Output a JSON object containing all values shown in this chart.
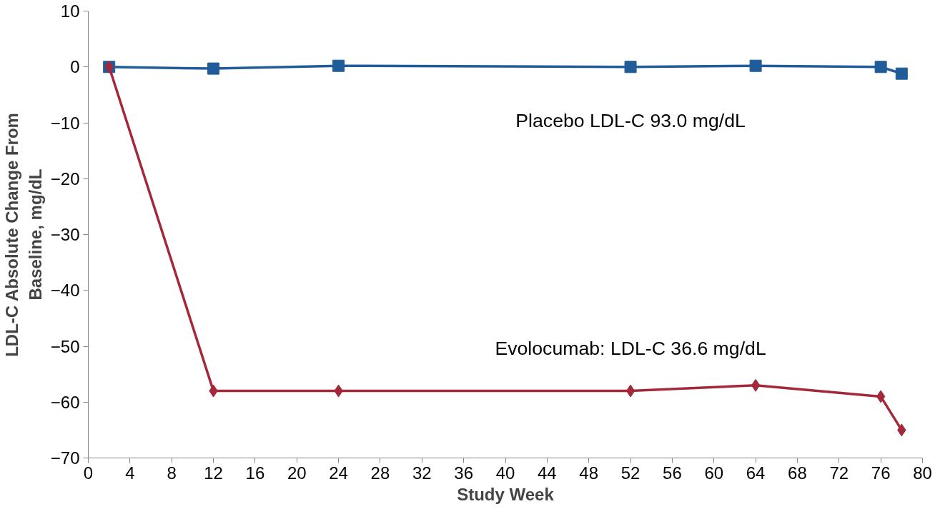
{
  "chart_data": {
    "type": "line",
    "xlabel": "Study Week",
    "ylabel": "LDL-C Absolute Change From\nBaseline, mg/dL",
    "xlim": [
      0,
      80
    ],
    "xticks": [
      0,
      4,
      8,
      12,
      16,
      20,
      24,
      28,
      32,
      36,
      40,
      44,
      48,
      52,
      56,
      60,
      64,
      68,
      72,
      76,
      80
    ],
    "ylim": [
      -70,
      10
    ],
    "yticks": [
      10,
      0,
      -10,
      -20,
      -30,
      -40,
      -50,
      -60,
      -70
    ],
    "grid": false,
    "legend": false,
    "x": [
      2,
      12,
      24,
      52,
      64,
      76,
      78
    ],
    "series": [
      {
        "name": "Placebo LDL-C 93.0 mg/dL",
        "color": "#1f5c99",
        "marker": "square",
        "values": [
          0,
          -0.3,
          0.2,
          0,
          0.2,
          0,
          -1.2
        ]
      },
      {
        "name": "Evolocumab: LDL-C 36.6 mg/dL",
        "color": "#a3293a",
        "marker": "diamond",
        "values": [
          0,
          -58,
          -58,
          -58,
          -57,
          -59,
          -65
        ]
      }
    ]
  }
}
